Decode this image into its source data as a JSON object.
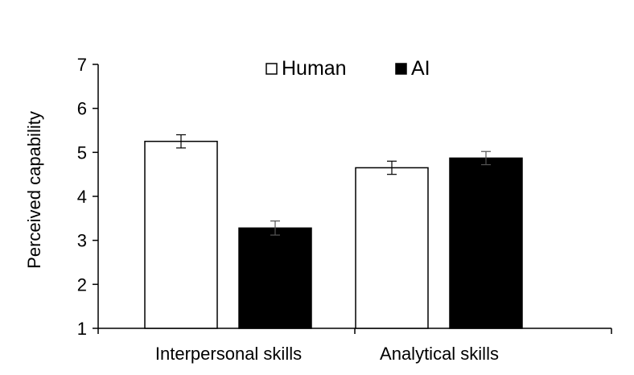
{
  "chart_data": {
    "type": "bar",
    "categories": [
      "Interpersonal skills",
      "Analytical skills"
    ],
    "series": [
      {
        "name": "Human",
        "values": [
          5.25,
          4.65
        ],
        "errors": [
          0.15,
          0.15
        ],
        "fill": "#ffffff",
        "stroke": "#000000"
      },
      {
        "name": "AI",
        "values": [
          3.28,
          4.87
        ],
        "errors": [
          0.16,
          0.15
        ],
        "fill": "#000000",
        "stroke": "#000000"
      }
    ],
    "ylabel": "Perceived capability",
    "xlabel": "",
    "ylim": [
      1,
      7
    ],
    "yticks": [
      "1",
      "2",
      "3",
      "4",
      "5",
      "6",
      "7"
    ],
    "grid": false,
    "legend_position": "top-center"
  }
}
